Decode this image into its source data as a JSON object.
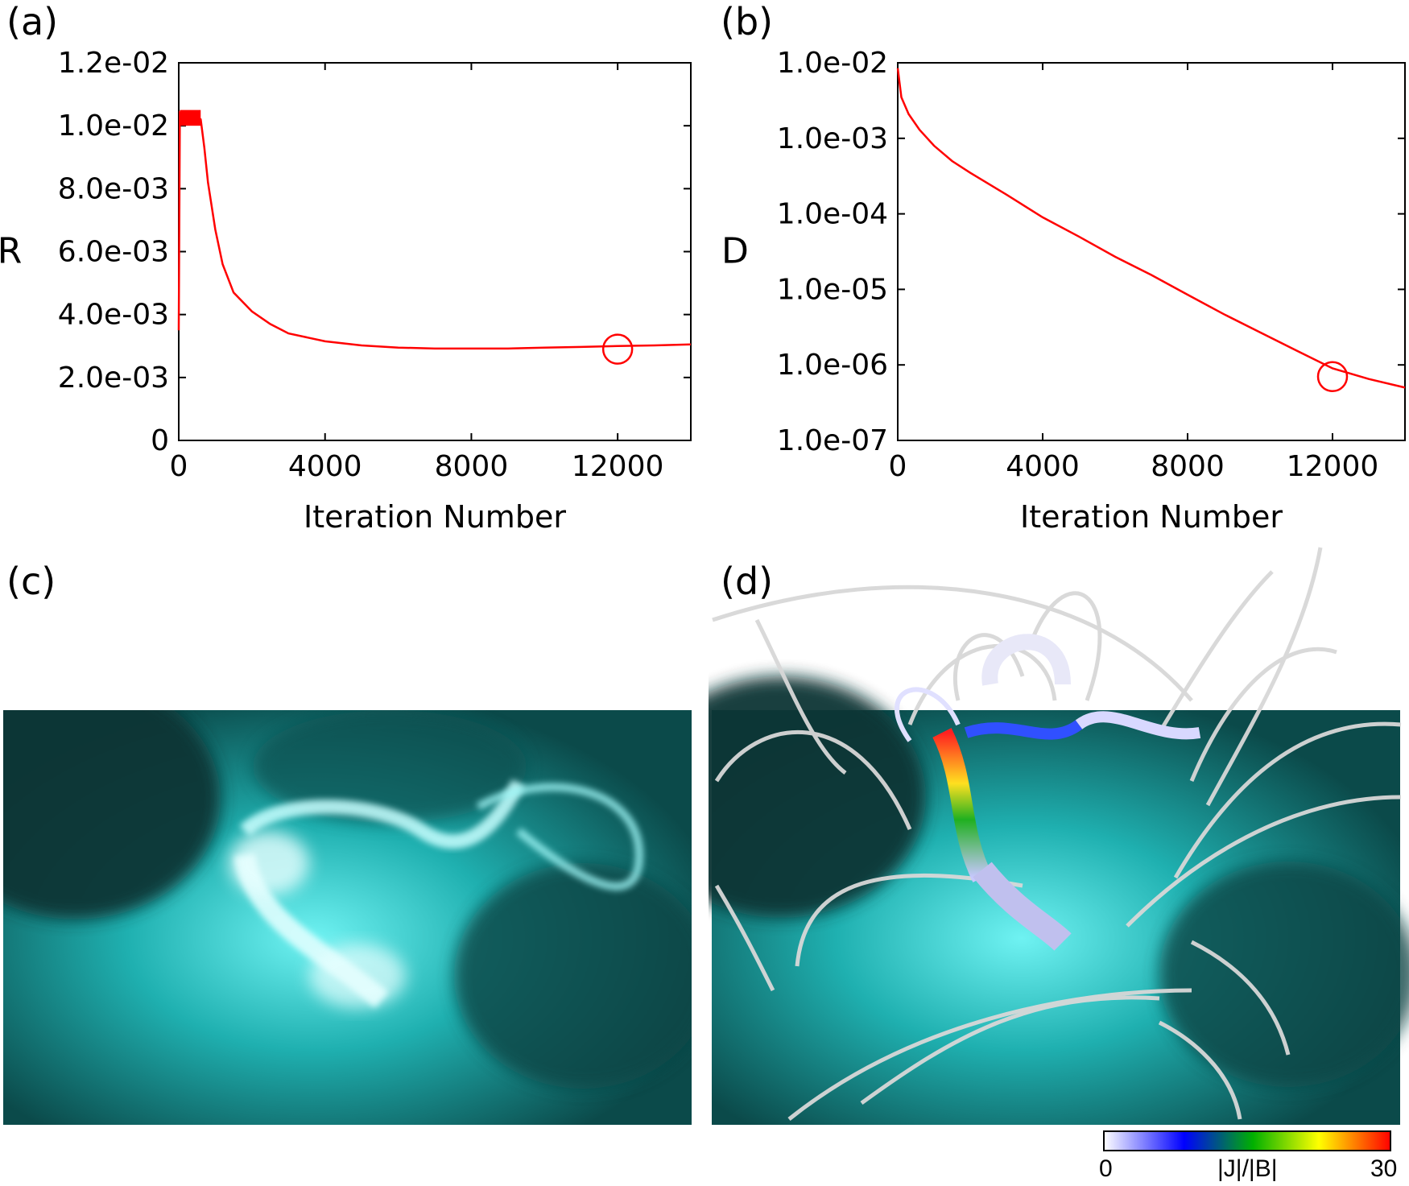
{
  "panels": {
    "a": {
      "label": "(a)"
    },
    "b": {
      "label": "(b)"
    },
    "c": {
      "label": "(c)"
    },
    "d": {
      "label": "(d)"
    }
  },
  "chart_data": [
    {
      "id": "a",
      "type": "line",
      "title": "",
      "xlabel": "Iteration Number",
      "ylabel": "R",
      "xlim": [
        0,
        14000
      ],
      "ylim": [
        0,
        0.012
      ],
      "yscale": "linear",
      "xticks": [
        0,
        4000,
        8000,
        12000
      ],
      "xtick_labels": [
        "0",
        "4000",
        "8000",
        "12000"
      ],
      "yticks": [
        0,
        0.002,
        0.004,
        0.006,
        0.008,
        0.01,
        0.012
      ],
      "ytick_labels": [
        "0",
        "2.0e-03",
        "4.0e-03",
        "6.0e-03",
        "8.0e-03",
        "1.0e-02",
        "1.2e-02"
      ],
      "color": "#ff0000",
      "series": [
        {
          "name": "R",
          "x": [
            0,
            30,
            100,
            300,
            500,
            600,
            700,
            800,
            1000,
            1200,
            1500,
            2000,
            2500,
            3000,
            4000,
            5000,
            6000,
            7000,
            8000,
            9000,
            10000,
            11000,
            12000,
            13000,
            14000
          ],
          "y": [
            0.0035,
            0.0104,
            0.0103,
            0.0102,
            0.0103,
            0.0102,
            0.0093,
            0.0082,
            0.0067,
            0.0056,
            0.0047,
            0.0041,
            0.0037,
            0.0034,
            0.00315,
            0.00302,
            0.00295,
            0.00292,
            0.00292,
            0.00292,
            0.00295,
            0.00297,
            0.003,
            0.00302,
            0.00305
          ]
        }
      ],
      "marker": {
        "shape": "circle",
        "x": 12000,
        "y": 0.0029
      }
    },
    {
      "id": "b",
      "type": "line",
      "title": "",
      "xlabel": "Iteration Number",
      "ylabel": "D",
      "xlim": [
        0,
        14000
      ],
      "ylim": [
        1e-07,
        0.01
      ],
      "yscale": "log",
      "xticks": [
        0,
        4000,
        8000,
        12000
      ],
      "xtick_labels": [
        "0",
        "4000",
        "8000",
        "12000"
      ],
      "yticks": [
        1e-07,
        1e-06,
        1e-05,
        0.0001,
        0.001,
        0.01
      ],
      "ytick_labels": [
        "1.0e-07",
        "1.0e-06",
        "1.0e-05",
        "1.0e-04",
        "1.0e-03",
        "1.0e-02"
      ],
      "color": "#ff0000",
      "series": [
        {
          "name": "D",
          "x": [
            0,
            100,
            300,
            600,
            1000,
            1500,
            2000,
            3000,
            4000,
            5000,
            6000,
            7000,
            8000,
            9000,
            10000,
            11000,
            12000,
            13000,
            14000
          ],
          "y": [
            0.0085,
            0.0035,
            0.0021,
            0.0013,
            0.0008,
            0.0005,
            0.00035,
            0.00018,
            9e-05,
            5e-05,
            2.7e-05,
            1.55e-05,
            8.5e-06,
            4.7e-06,
            2.7e-06,
            1.55e-06,
            9e-07,
            6.5e-07,
            5e-07
          ]
        }
      ],
      "marker": {
        "shape": "circle",
        "x": 12000,
        "y": 7e-07
      }
    }
  ],
  "colorbar": {
    "min_label": "0",
    "mid_label": "|J|/|B|",
    "max_label": "30",
    "colors": [
      "#ffffff",
      "#0000ff",
      "#00b000",
      "#ffff00",
      "#ff0000"
    ]
  },
  "colors": {
    "line": "#ff0000",
    "euv_dark": "#0a3a3a",
    "euv_bright": "#c8ffff",
    "euv_mid": "#1aa5a5"
  }
}
